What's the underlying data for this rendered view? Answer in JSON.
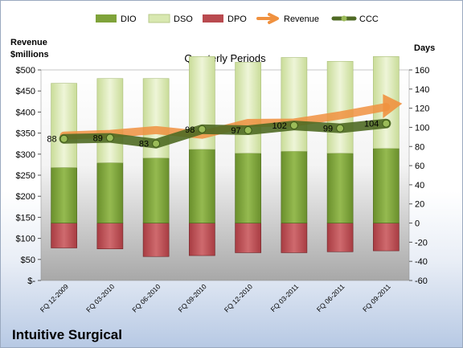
{
  "colors": {
    "dio": "#7fa33a",
    "dso": "#d8e8b0",
    "dpo": "#b94a4f",
    "revenue": "#f0913f",
    "ccc": "#4f6a24",
    "ccc_marker": "#9bbb59"
  },
  "company": "Intuitive Surgical",
  "chart_data": {
    "type": "bar",
    "title": "Quarterly Periods",
    "left_axis_title": [
      "Revenue",
      "$millions"
    ],
    "right_axis_title": "Days",
    "left_ylim": [
      0,
      500
    ],
    "right_ylim": [
      -60,
      160
    ],
    "left_tick_labels": [
      "$-",
      "$50",
      "$100",
      "$150",
      "$200",
      "$250",
      "$300",
      "$350",
      "$400",
      "$450",
      "$500"
    ],
    "right_tick_labels": [
      "-60",
      "-40",
      "-20",
      "0",
      "20",
      "40",
      "60",
      "80",
      "100",
      "120",
      "140",
      "160"
    ],
    "grid": false,
    "legend_position": "top",
    "categories": [
      "FQ 12-2009",
      "FQ 03-2010",
      "FQ 06-2010",
      "FQ 09-2010",
      "FQ 12-2010",
      "FQ 03-2011",
      "FQ 06-2011",
      "FQ 09-2011"
    ],
    "series": [
      {
        "name": "DIO",
        "type": "bar",
        "axis": "right",
        "base": 0,
        "values": [
          58,
          63,
          68,
          77,
          73,
          75,
          73,
          78
        ]
      },
      {
        "name": "DSO",
        "type": "bar",
        "axis": "right",
        "base_series": "DIO",
        "values": [
          88,
          88,
          83,
          97,
          95,
          98,
          96,
          96
        ]
      },
      {
        "name": "DPO",
        "type": "bar",
        "axis": "right",
        "base": 0,
        "values": [
          -26,
          -27,
          -35,
          -34,
          -31,
          -31,
          -30,
          -29
        ]
      },
      {
        "name": "Revenue",
        "type": "line",
        "axis": "left",
        "values": [
          344,
          348,
          357,
          346,
          374,
          375,
          392,
          412
        ]
      },
      {
        "name": "CCC",
        "type": "line",
        "axis": "right",
        "values": [
          88,
          89,
          83,
          98,
          97,
          102,
          99,
          104
        ]
      }
    ],
    "data_labels": [
      "88",
      "89",
      "83",
      "98",
      "97",
      "102",
      "99",
      "104"
    ]
  }
}
